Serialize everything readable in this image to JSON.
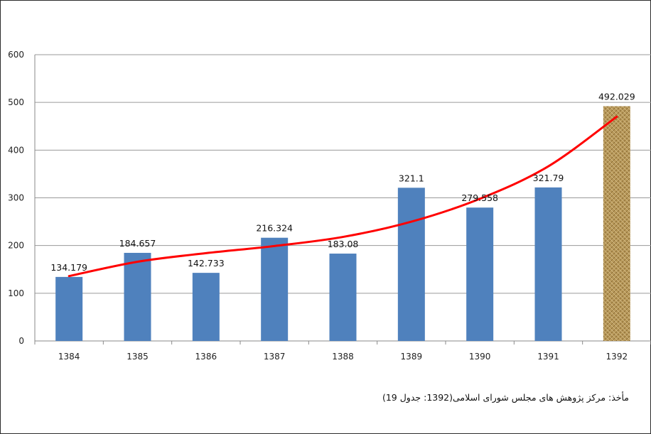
{
  "chart_data": {
    "type": "bar",
    "categories": [
      "1384",
      "1385",
      "1386",
      "1387",
      "1388",
      "1389",
      "1390",
      "1391",
      "1392"
    ],
    "values": [
      134.179,
      184.657,
      142.733,
      216.324,
      183.08,
      321.1,
      279.558,
      321.79,
      492.029
    ],
    "value_labels": [
      "134.179",
      "184.657",
      "142.733",
      "216.324",
      "183.08",
      "321.1",
      "279.558",
      "321.79",
      "492.029"
    ],
    "yticks": [
      "0",
      "100",
      "200",
      "300",
      "400",
      "500",
      "600"
    ],
    "ylim": [
      0,
      600
    ],
    "grid": true,
    "bar_color": "#4f81bd",
    "highlight_index": 8,
    "highlight_color": "#b08a45",
    "trendline": {
      "type": "polynomial",
      "color": "#ff0000",
      "x": [
        1384,
        1385,
        1386,
        1387,
        1388,
        1389,
        1390,
        1391,
        1392
      ],
      "y": [
        136,
        166,
        184,
        199,
        218,
        250,
        298,
        366,
        470
      ]
    }
  },
  "source_note": "مأخذ: مرکز پژوهش های مجلس شورای اسلامی(1392: جدول 19)"
}
